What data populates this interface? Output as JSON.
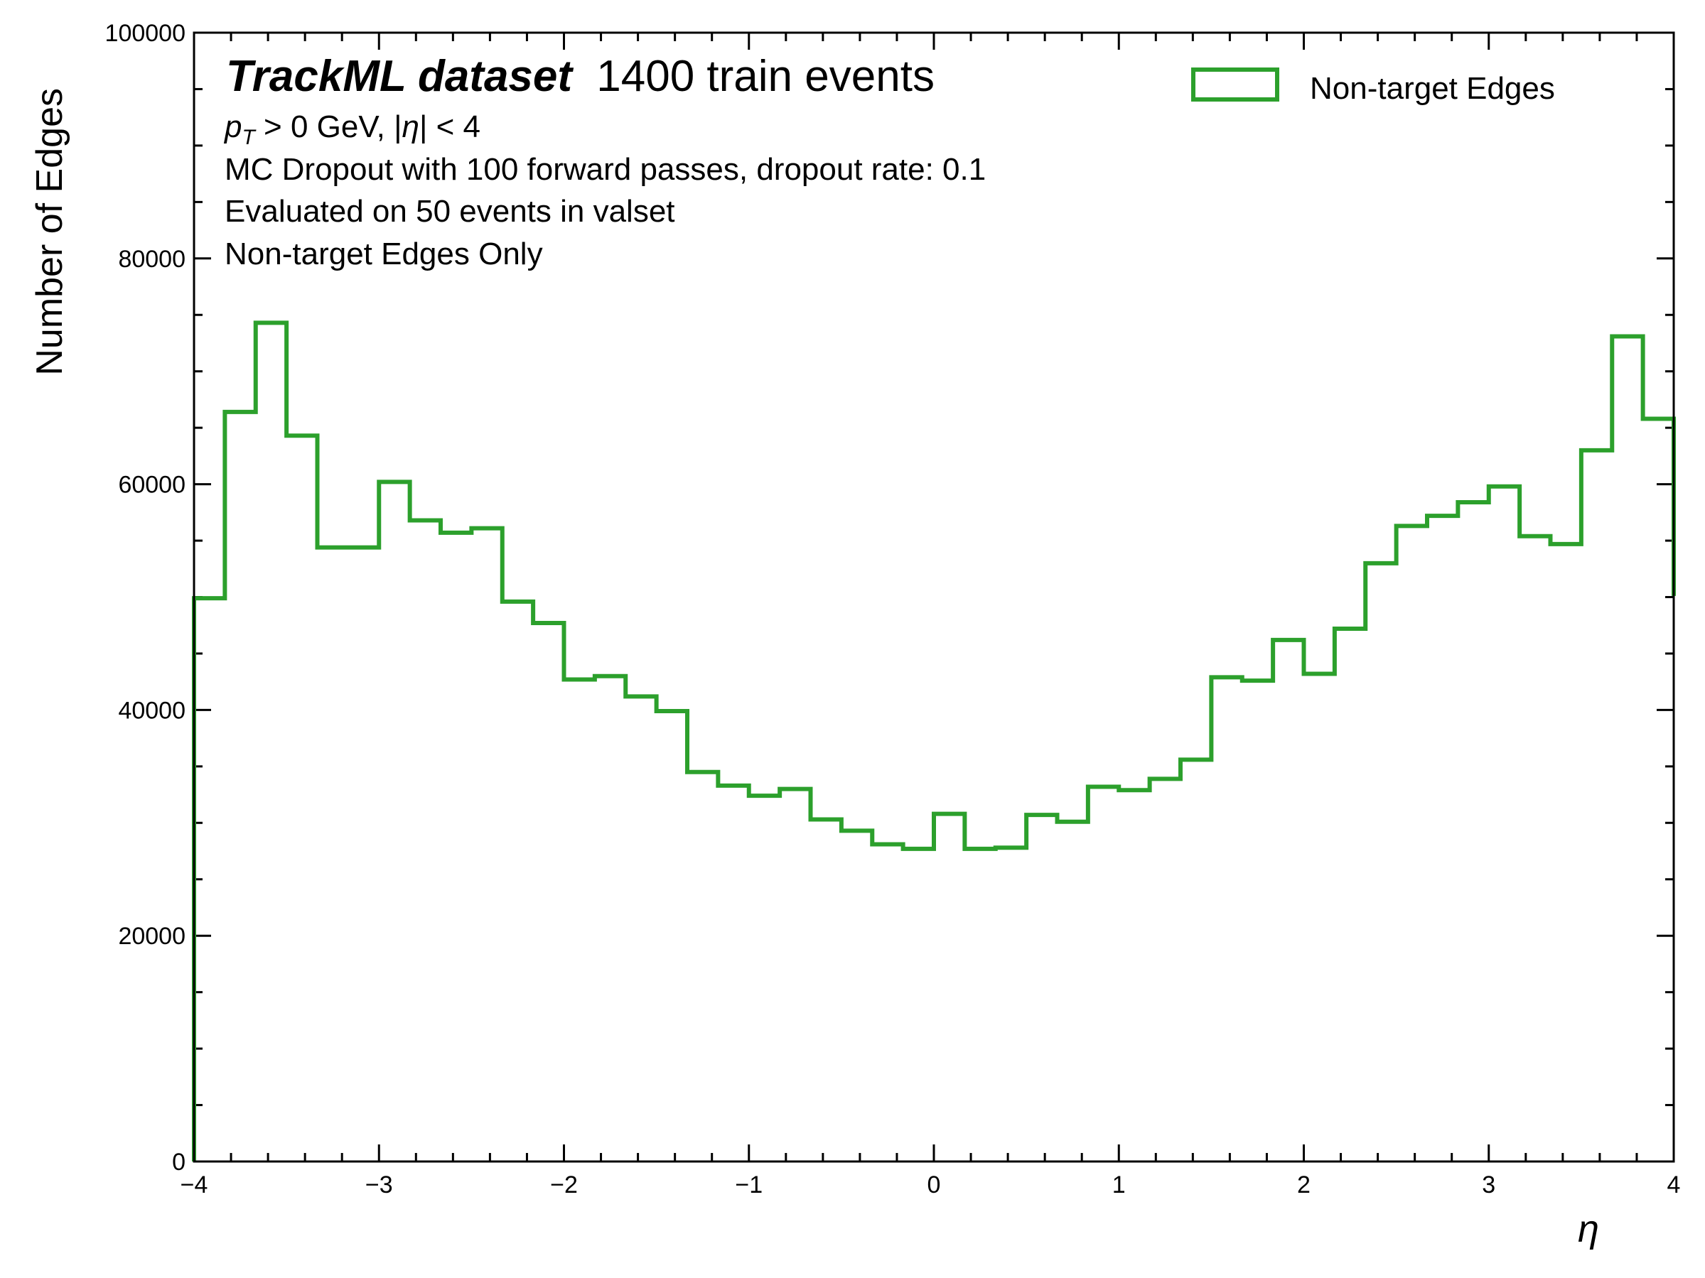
{
  "chart_data": {
    "type": "histogram-step",
    "xlabel": "η",
    "ylabel": "Number of Edges",
    "xlim": [
      -4,
      4
    ],
    "ylim": [
      0,
      100000
    ],
    "x_ticks": [
      -4,
      -3,
      -2,
      -1,
      0,
      1,
      2,
      3,
      4
    ],
    "x_tick_labels": [
      "−4",
      "−3",
      "−2",
      "−1",
      "0",
      "1",
      "2",
      "3",
      "4"
    ],
    "y_ticks": [
      0,
      20000,
      40000,
      60000,
      80000,
      100000
    ],
    "y_tick_labels": [
      "0",
      "20000",
      "40000",
      "60000",
      "80000",
      "100000"
    ],
    "grid": false,
    "legend_position": "top-right",
    "annotations": {
      "experiment": "TrackML dataset",
      "experiment_suffix": "1400 train events",
      "cut_pt_prefix": "p",
      "cut_pt_sub": "T",
      "cut_pt_rest": " > 0 GeV, |",
      "cut_eta_symbol": "η",
      "cut_eta_rest": "| < 4",
      "line2": "MC Dropout with 100 forward passes, dropout rate: 0.1",
      "line3": "Evaluated on 50 events in valset",
      "line4": "Non-target Edges Only"
    },
    "series": [
      {
        "name": "Non-target Edges",
        "color": "#2ca02c",
        "bin_edges": [
          -4.0,
          -3.8333,
          -3.6667,
          -3.5,
          -3.3333,
          -3.1667,
          -3.0,
          -2.8333,
          -2.6667,
          -2.5,
          -2.3333,
          -2.1667,
          -2.0,
          -1.8333,
          -1.6667,
          -1.5,
          -1.3333,
          -1.1667,
          -1.0,
          -0.8333,
          -0.6667,
          -0.5,
          -0.3333,
          -0.1667,
          0.0,
          0.1667,
          0.3333,
          0.5,
          0.6667,
          0.8333,
          1.0,
          1.1667,
          1.3333,
          1.5,
          1.6667,
          1.8333,
          2.0,
          2.1667,
          2.3333,
          2.5,
          2.6667,
          2.8333,
          3.0,
          3.1667,
          3.3333,
          3.5,
          3.6667,
          3.8333,
          4.0
        ],
        "values": [
          49900,
          66400,
          74300,
          64300,
          54400,
          54400,
          60200,
          56800,
          55700,
          56100,
          49600,
          47700,
          42700,
          43000,
          41200,
          39900,
          34500,
          33300,
          32400,
          33000,
          30300,
          29300,
          28100,
          27700,
          30800,
          27700,
          27800,
          30700,
          30100,
          33200,
          32900,
          33900,
          35600,
          42900,
          42600,
          46200,
          43200,
          47200,
          53000,
          56300,
          57200,
          58400,
          59800,
          55400,
          54700,
          63000,
          73100,
          65800,
          50100
        ]
      }
    ]
  }
}
